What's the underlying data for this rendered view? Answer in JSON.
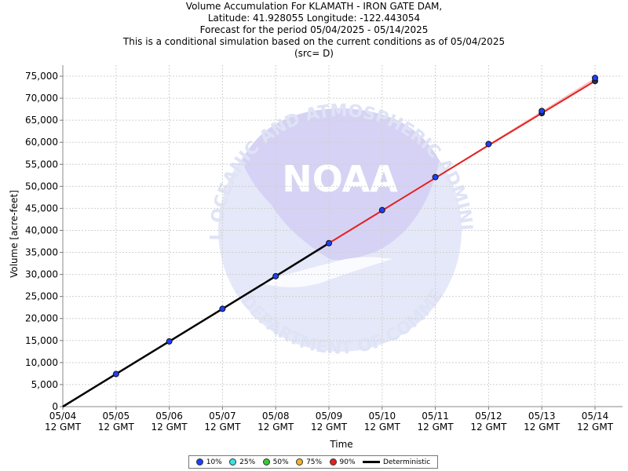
{
  "title_lines": [
    "Volume Accumulation For KLAMATH - IRON GATE DAM,",
    "Latitude: 41.928055 Longitude: -122.443054",
    "Forecast for the period 05/04/2025 - 05/14/2025",
    "This is a conditional simulation based on the current conditions as of 05/04/2025",
    "(src= D)"
  ],
  "watermark": {
    "wordmark": "NOAA",
    "ring_top": "NATIONAL OCEANIC AND ATMOSPHERIC ADMINISTRATION",
    "ring_bottom": "U.S. DEPARTMENT OF COMMERCE"
  },
  "legend": {
    "items": [
      {
        "label": "10%",
        "color": "#1f3fff"
      },
      {
        "label": "25%",
        "color": "#33e5e5"
      },
      {
        "label": "50%",
        "color": "#33cc33"
      },
      {
        "label": "75%",
        "color": "#f0b429"
      },
      {
        "label": "90%",
        "color": "#e52020"
      }
    ],
    "deterministic_label": "Deterministic"
  },
  "chart_data": {
    "type": "line",
    "xlabel": "Time",
    "ylabel": "Volume [acre-feet]",
    "ylim": [
      0,
      77500
    ],
    "yticks": [
      0,
      5000,
      10000,
      15000,
      20000,
      25000,
      30000,
      35000,
      40000,
      45000,
      50000,
      55000,
      60000,
      65000,
      70000,
      75000
    ],
    "ytick_labels": [
      "0",
      "5,000",
      "10,000",
      "15,000",
      "20,000",
      "25,000",
      "30,000",
      "35,000",
      "40,000",
      "45,000",
      "50,000",
      "55,000",
      "60,000",
      "65,000",
      "70,000",
      "75,000"
    ],
    "x_categories": [
      "05/04",
      "05/05",
      "05/06",
      "05/07",
      "05/08",
      "05/09",
      "05/10",
      "05/11",
      "05/12",
      "05/13",
      "05/14"
    ],
    "x_sublabel": "12 GMT",
    "grid": true,
    "series": [
      {
        "name": "Deterministic",
        "color": "#000000",
        "values": [
          0,
          7400,
          14800,
          22200,
          29600,
          37100,
          null,
          null,
          null,
          null,
          null
        ]
      },
      {
        "name": "10%",
        "color": "#1f3fff",
        "values": [
          null,
          7400,
          14800,
          22200,
          29600,
          37100,
          44600,
          52100,
          59600,
          67100,
          74600
        ]
      },
      {
        "name": "90%",
        "color": "#e52020",
        "values": [
          null,
          null,
          null,
          null,
          null,
          37100,
          44500,
          51900,
          59300,
          66600,
          73900
        ]
      }
    ]
  }
}
